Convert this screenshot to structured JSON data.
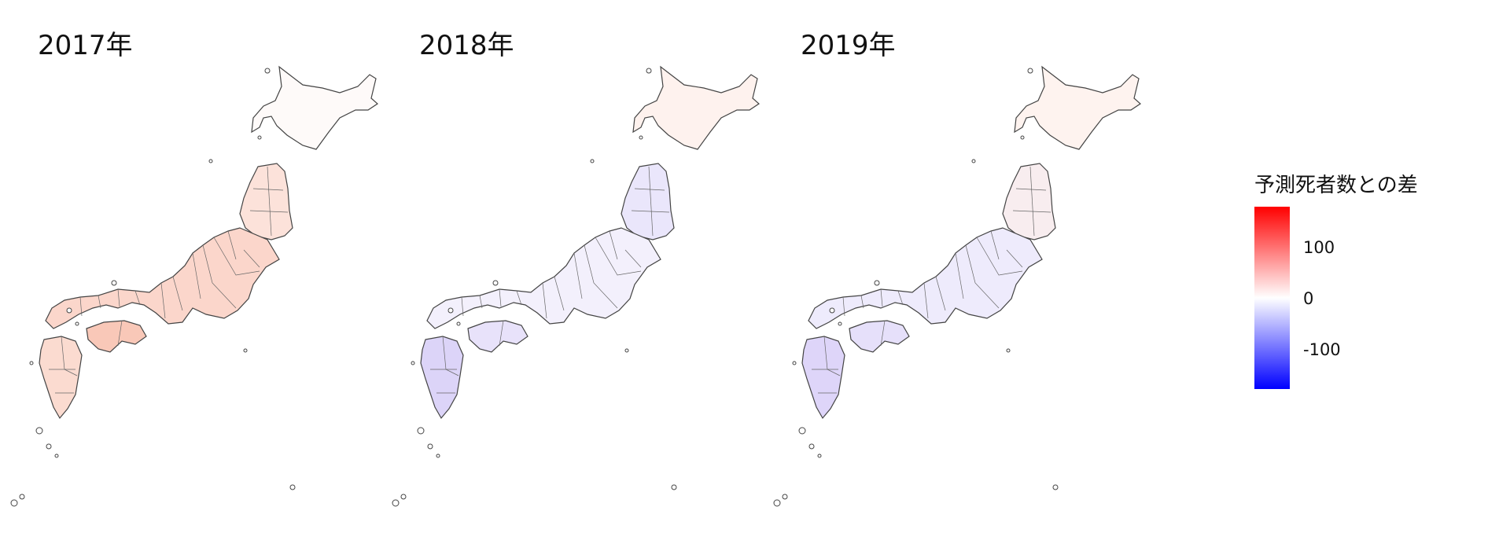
{
  "panels": [
    {
      "title": "2017年",
      "tint": "red"
    },
    {
      "title": "2018年",
      "tint": "mixed"
    },
    {
      "title": "2019年",
      "tint": "blue"
    }
  ],
  "legend": {
    "title": "予測死者数との差",
    "labels": [
      "100",
      "0",
      "-100"
    ],
    "low_color": "#0000FF",
    "mid_color": "#FFFFFF",
    "high_color": "#FF0000"
  }
}
